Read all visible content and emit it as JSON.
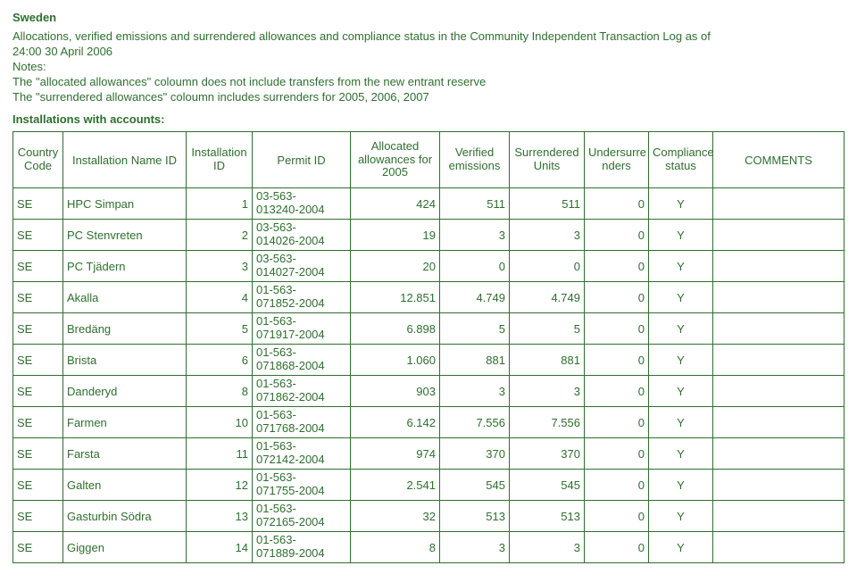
{
  "header": {
    "title": "Sweden",
    "line1": "Allocations, verified emissions and surrendered allowances and compliance status in the Community Independent Transaction Log  as of",
    "line2": "24:00 30 April 2006",
    "notes_label": "Notes:",
    "note1": "The \"allocated allowances\" coloumn does not include transfers from the new entrant reserve",
    "note2": "The \"surrendered allowances\" coloumn includes surrenders for 2005, 2006, 2007",
    "section": "Installations with accounts:"
  },
  "columns": {
    "country": "Country\nCode",
    "name": "Installation Name ID",
    "instid": "Installation\nID",
    "permit": "Permit ID",
    "alloc": "Allocated\nallowances for\n2005",
    "verified": "Verified\nemissions",
    "surr": "Surrendered\nUnits",
    "under": "Undersurre\nnders",
    "compl": "Compliance\nstatus",
    "comments": "COMMENTS"
  },
  "rows": [
    {
      "country": "SE",
      "name": "HPC Simpan",
      "instid": "1",
      "permit": "03-563-\n013240-2004",
      "alloc": "424",
      "verified": "511",
      "surr": "511",
      "under": "0",
      "compl": "Y",
      "comments": ""
    },
    {
      "country": "SE",
      "name": "PC Stenvreten",
      "instid": "2",
      "permit": "03-563-\n014026-2004",
      "alloc": "19",
      "verified": "3",
      "surr": "3",
      "under": "0",
      "compl": "Y",
      "comments": ""
    },
    {
      "country": "SE",
      "name": "PC Tjädern",
      "instid": "3",
      "permit": "03-563-\n014027-2004",
      "alloc": "20",
      "verified": "0",
      "surr": "0",
      "under": "0",
      "compl": "Y",
      "comments": ""
    },
    {
      "country": "SE",
      "name": "Akalla",
      "instid": "4",
      "permit": "01-563-\n071852-2004",
      "alloc": "12.851",
      "verified": "4.749",
      "surr": "4.749",
      "under": "0",
      "compl": "Y",
      "comments": ""
    },
    {
      "country": "SE",
      "name": "Bredäng",
      "instid": "5",
      "permit": "01-563-\n071917-2004",
      "alloc": "6.898",
      "verified": "5",
      "surr": "5",
      "under": "0",
      "compl": "Y",
      "comments": ""
    },
    {
      "country": "SE",
      "name": "Brista",
      "instid": "6",
      "permit": "01-563-\n071868-2004",
      "alloc": "1.060",
      "verified": "881",
      "surr": "881",
      "under": "0",
      "compl": "Y",
      "comments": ""
    },
    {
      "country": "SE",
      "name": "Danderyd",
      "instid": "8",
      "permit": "01-563-\n071862-2004",
      "alloc": "903",
      "verified": "3",
      "surr": "3",
      "under": "0",
      "compl": "Y",
      "comments": ""
    },
    {
      "country": "SE",
      "name": "Farmen",
      "instid": "10",
      "permit": "01-563-\n071768-2004",
      "alloc": "6.142",
      "verified": "7.556",
      "surr": "7.556",
      "under": "0",
      "compl": "Y",
      "comments": ""
    },
    {
      "country": "SE",
      "name": "Farsta",
      "instid": "11",
      "permit": "01-563-\n072142-2004",
      "alloc": "974",
      "verified": "370",
      "surr": "370",
      "under": "0",
      "compl": "Y",
      "comments": ""
    },
    {
      "country": "SE",
      "name": "Galten",
      "instid": "12",
      "permit": "01-563-\n071755-2004",
      "alloc": "2.541",
      "verified": "545",
      "surr": "545",
      "under": "0",
      "compl": "Y",
      "comments": ""
    },
    {
      "country": "SE",
      "name": "Gasturbin Södra",
      "instid": "13",
      "permit": "01-563-\n072165-2004",
      "alloc": "32",
      "verified": "513",
      "surr": "513",
      "under": "0",
      "compl": "Y",
      "comments": ""
    },
    {
      "country": "SE",
      "name": "Giggen",
      "instid": "14",
      "permit": "01-563-\n071889-2004",
      "alloc": "8",
      "verified": "3",
      "surr": "3",
      "under": "0",
      "compl": "Y",
      "comments": ""
    }
  ]
}
